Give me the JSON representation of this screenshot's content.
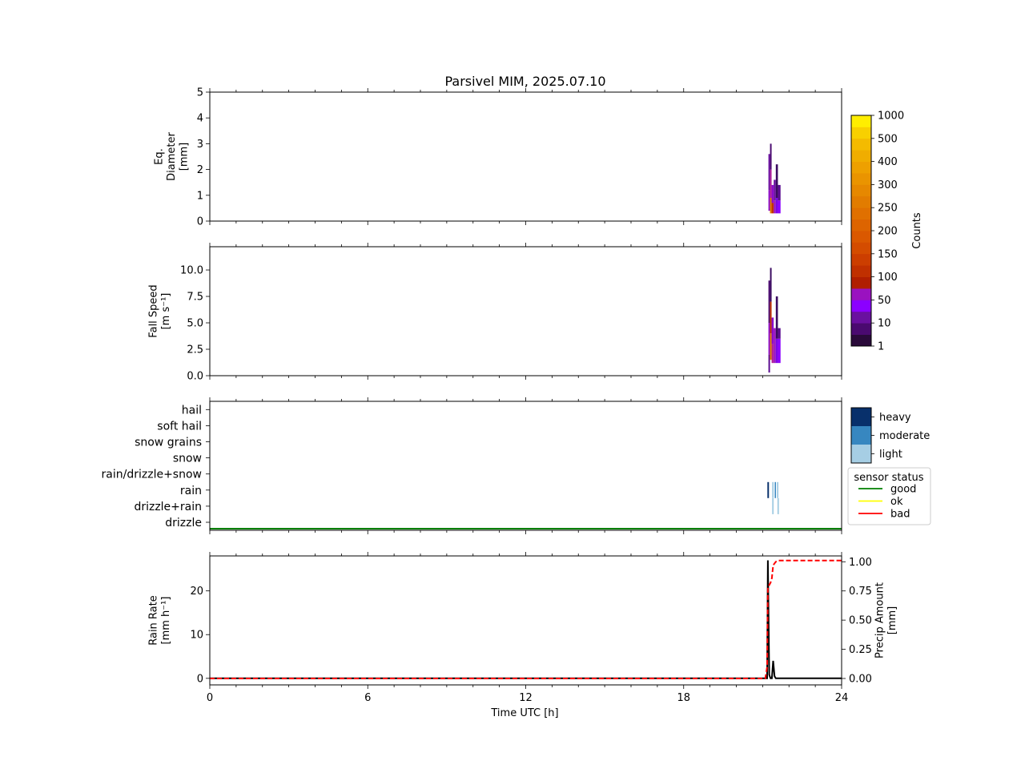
{
  "title": "Parsivel MIM, 2025.07.10",
  "chart_data": [
    {
      "type": "heatmap",
      "panel": "diameter",
      "ylabel_lines": [
        "Eq.",
        "Diameter",
        "[mm]"
      ],
      "ylim": [
        0,
        5
      ],
      "yticks": [
        0,
        1,
        2,
        3,
        4,
        5
      ],
      "xlim": [
        0,
        24
      ],
      "columns": [
        {
          "t0": 21.22,
          "t1": 21.28,
          "y0": 0.4,
          "y1": 1.2,
          "c": "#8b0acb"
        },
        {
          "t0": 21.22,
          "t1": 21.28,
          "y0": 1.2,
          "y1": 2.6,
          "c": "#6a10a0"
        },
        {
          "t0": 21.28,
          "t1": 21.34,
          "y0": 0.3,
          "y1": 0.9,
          "c": "#e07a00"
        },
        {
          "t0": 21.28,
          "t1": 21.34,
          "y0": 0.9,
          "y1": 2.0,
          "c": "#b0209a"
        },
        {
          "t0": 21.28,
          "t1": 21.34,
          "y0": 2.0,
          "y1": 3.0,
          "c": "#4a0a70"
        },
        {
          "t0": 21.34,
          "t1": 21.42,
          "y0": 0.3,
          "y1": 0.7,
          "c": "#c03000"
        },
        {
          "t0": 21.34,
          "t1": 21.42,
          "y0": 0.7,
          "y1": 1.4,
          "c": "#8b0acb"
        },
        {
          "t0": 21.42,
          "t1": 21.5,
          "y0": 0.3,
          "y1": 0.8,
          "c": "#9a12c0"
        },
        {
          "t0": 21.42,
          "t1": 21.5,
          "y0": 0.8,
          "y1": 1.6,
          "c": "#6a10a0"
        },
        {
          "t0": 21.5,
          "t1": 21.58,
          "y0": 0.3,
          "y1": 0.9,
          "c": "#7a06e8"
        },
        {
          "t0": 21.5,
          "t1": 21.58,
          "y0": 0.9,
          "y1": 2.2,
          "c": "#3a0a60"
        },
        {
          "t0": 21.58,
          "t1": 21.68,
          "y0": 0.3,
          "y1": 0.8,
          "c": "#8b00ff"
        },
        {
          "t0": 21.58,
          "t1": 21.68,
          "y0": 0.8,
          "y1": 1.4,
          "c": "#5a0a90"
        }
      ]
    },
    {
      "type": "heatmap",
      "panel": "fallspeed",
      "ylabel_lines": [
        "Fall Speed",
        "[m s⁻¹]"
      ],
      "ylim": [
        0,
        12.2
      ],
      "yticks": [
        0.0,
        2.5,
        5.0,
        7.5,
        10.0
      ],
      "yticklabels": [
        "0.0",
        "2.5",
        "5.0",
        "7.5",
        "10.0"
      ],
      "xlim": [
        0,
        24
      ],
      "columns": [
        {
          "t0": 21.22,
          "t1": 21.28,
          "y0": 0.3,
          "y1": 2.0,
          "c": "#5a0a90"
        },
        {
          "t0": 21.22,
          "t1": 21.28,
          "y0": 2.0,
          "y1": 5.0,
          "c": "#8b0acb"
        },
        {
          "t0": 21.22,
          "t1": 21.28,
          "y0": 5.0,
          "y1": 9.0,
          "c": "#4a0a70"
        },
        {
          "t0": 21.28,
          "t1": 21.34,
          "y0": 1.5,
          "y1": 4.0,
          "c": "#e07a00"
        },
        {
          "t0": 21.28,
          "t1": 21.34,
          "y0": 4.0,
          "y1": 7.0,
          "c": "#c03000"
        },
        {
          "t0": 21.28,
          "t1": 21.34,
          "y0": 7.0,
          "y1": 10.2,
          "c": "#3a0a60"
        },
        {
          "t0": 21.34,
          "t1": 21.42,
          "y0": 1.2,
          "y1": 3.0,
          "c": "#b0209a"
        },
        {
          "t0": 21.34,
          "t1": 21.42,
          "y0": 3.0,
          "y1": 5.5,
          "c": "#8b0acb"
        },
        {
          "t0": 21.42,
          "t1": 21.5,
          "y0": 1.2,
          "y1": 4.5,
          "c": "#9a12c0"
        },
        {
          "t0": 21.5,
          "t1": 21.58,
          "y0": 1.2,
          "y1": 3.5,
          "c": "#7a06e8"
        },
        {
          "t0": 21.5,
          "t1": 21.58,
          "y0": 3.5,
          "y1": 7.5,
          "c": "#3a0a60"
        },
        {
          "t0": 21.58,
          "t1": 21.68,
          "y0": 1.2,
          "y1": 3.5,
          "c": "#8b00ff"
        },
        {
          "t0": 21.58,
          "t1": 21.68,
          "y0": 3.5,
          "y1": 4.5,
          "c": "#5a0a90"
        }
      ]
    },
    {
      "type": "heatmap",
      "panel": "weather_code",
      "categories": [
        "drizzle",
        "drizzle+rain",
        "rain",
        "rain/drizzle+snow",
        "snow",
        "snow grains",
        "soft hail",
        "hail"
      ],
      "xlim": [
        0,
        24
      ],
      "marks": [
        {
          "t0": 21.18,
          "t1": 21.24,
          "cat": "rain",
          "level": "heavy"
        },
        {
          "t0": 21.36,
          "t1": 21.42,
          "cat": "rain",
          "level": "light"
        },
        {
          "t0": 21.46,
          "t1": 21.5,
          "cat": "rain",
          "level": "moderate"
        },
        {
          "t0": 21.54,
          "t1": 21.6,
          "cat": "rain",
          "level": "light"
        },
        {
          "t0": 21.36,
          "t1": 21.42,
          "cat": "drizzle+rain",
          "level": "light"
        },
        {
          "t0": 21.56,
          "t1": 21.62,
          "cat": "drizzle+rain",
          "level": "light"
        }
      ],
      "status_line": {
        "status": "good",
        "level": 0.03
      }
    },
    {
      "type": "line",
      "panel": "rain",
      "ylabel_lines": [
        "Rain Rate",
        "[mm h⁻¹]"
      ],
      "ylabel2_lines": [
        "Precip Amount",
        "[mm]"
      ],
      "ylim": [
        -1.5,
        28
      ],
      "yticks": [
        0,
        10,
        20
      ],
      "ylim2": [
        -0.055,
        1.05
      ],
      "yticks2": [
        0.0,
        0.25,
        0.5,
        0.75,
        1.0
      ],
      "yticklabels2": [
        "0.00",
        "0.25",
        "0.50",
        "0.75",
        "1.00"
      ],
      "xlim": [
        0,
        24
      ],
      "xticks": [
        0,
        6,
        12,
        18,
        24
      ],
      "xlabel": "Time UTC [h]",
      "series": [
        {
          "axis": "left",
          "color": "#000000",
          "style": "solid",
          "x": [
            0,
            21.1,
            21.17,
            21.2,
            21.25,
            21.3,
            21.35,
            21.4,
            21.45,
            21.5,
            21.55,
            21.6,
            24
          ],
          "y": [
            0,
            0,
            0,
            27,
            0.8,
            0,
            0,
            4,
            0.5,
            0,
            0,
            0,
            0
          ]
        },
        {
          "axis": "right",
          "color": "#ff0000",
          "style": "dashed",
          "x": [
            0,
            21.1,
            21.17,
            21.2,
            21.25,
            21.3,
            21.35,
            21.4,
            21.5,
            21.6,
            24
          ],
          "y": [
            0,
            0,
            0.1,
            0.78,
            0.8,
            0.82,
            0.86,
            0.97,
            1.0,
            1.01,
            1.01
          ]
        }
      ]
    }
  ],
  "colorbar": {
    "label": "Counts",
    "ticklabels": [
      "1",
      "10",
      "50",
      "100",
      "150",
      "200",
      "250",
      "300",
      "400",
      "500",
      "1000"
    ],
    "colors": [
      "#2a0a3a",
      "#4a0a70",
      "#6a10a0",
      "#8b00ff",
      "#9a12c0",
      "#b01e00",
      "#c03000",
      "#cc3e00",
      "#d44c00",
      "#da5800",
      "#dd6400",
      "#e07000",
      "#e27c00",
      "#e68800",
      "#ea9400",
      "#eea000",
      "#f0ad00",
      "#f4bb00",
      "#f8d000",
      "#ffee00"
    ]
  },
  "intensity_legend": {
    "labels": [
      "heavy",
      "moderate",
      "light"
    ],
    "colors": [
      "#08306b",
      "#3787c0",
      "#a6cee4"
    ]
  },
  "status_legend": {
    "title": "sensor status",
    "items": [
      {
        "label": "good",
        "color": "#008000"
      },
      {
        "label": "ok",
        "color": "#ffff00"
      },
      {
        "label": "bad",
        "color": "#ff0000"
      }
    ]
  }
}
